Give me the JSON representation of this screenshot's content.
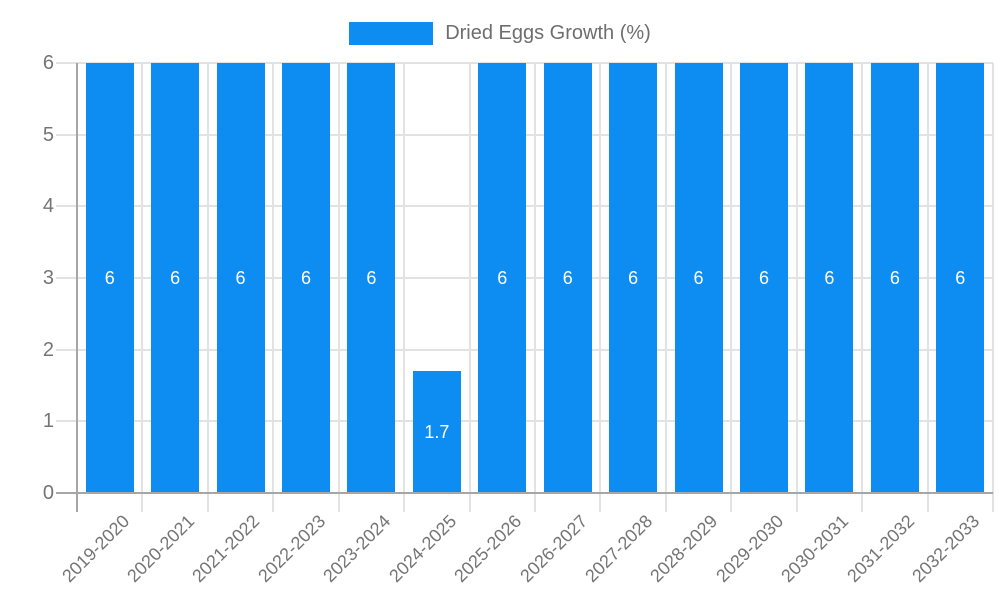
{
  "chart_data": {
    "type": "bar",
    "title": "",
    "legend_label": "Dried Eggs Growth (%)",
    "legend_position": "top-center",
    "categories": [
      "2019-2020",
      "2020-2021",
      "2021-2022",
      "2022-2023",
      "2023-2024",
      "2024-2025",
      "2025-2026",
      "2026-2027",
      "2027-2028",
      "2028-2029",
      "2029-2030",
      "2030-2031",
      "2031-2032",
      "2032-2033"
    ],
    "values": [
      6,
      6,
      6,
      6,
      6,
      1.7,
      6,
      6,
      6,
      6,
      6,
      6,
      6,
      6
    ],
    "xlabel": "",
    "ylabel": "",
    "ylim": [
      0,
      6
    ],
    "yticks": [
      0,
      1,
      2,
      3,
      4,
      5,
      6
    ],
    "grid": true,
    "x_tick_label_rotation_deg": -45,
    "colors": {
      "bar": "#0d8df2",
      "grid_line": "#e2e2e2",
      "axis_line": "#a6a6a6",
      "tick_text": "#757575",
      "legend_text": "#6e6e6e",
      "data_label_text": "#ffffff",
      "background": "#ffffff"
    }
  }
}
